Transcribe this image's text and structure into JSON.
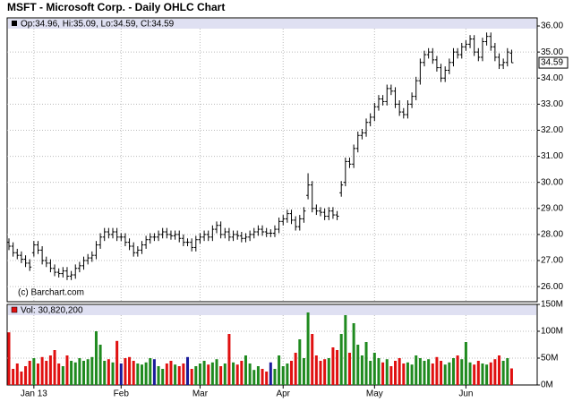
{
  "chart_data": [
    {
      "type": "ohlc",
      "title": "MSFT - Microsoft Corp. - Daily OHLC Chart",
      "legend": "Op:34.96, Hi:35.09, Lo:34.59, Cl:34.59",
      "credit": "(c) Barchart.com",
      "color": "#000000",
      "grid": true,
      "ylim": [
        25.42,
        36.31
      ],
      "yticks": [
        {
          "value": 26,
          "label": "26.00"
        },
        {
          "value": 27,
          "label": "27.00"
        },
        {
          "value": 28,
          "label": "28.00"
        },
        {
          "value": 29,
          "label": "29.00"
        },
        {
          "value": 30,
          "label": "30.00"
        },
        {
          "value": 31,
          "label": "31.00"
        },
        {
          "value": 32,
          "label": "32.00"
        },
        {
          "value": 33,
          "label": "33.00"
        },
        {
          "value": 34,
          "label": "34.00"
        },
        {
          "value": 35,
          "label": "35.00"
        },
        {
          "value": 36,
          "label": "36.00"
        }
      ],
      "open": [
        27.7,
        27.55,
        27.3,
        27.2,
        27.05,
        26.9,
        27.3,
        27.6,
        27.4,
        27.0,
        26.9,
        26.7,
        26.55,
        26.5,
        26.6,
        26.4,
        26.45,
        26.7,
        26.8,
        27.0,
        27.1,
        27.2,
        27.6,
        27.9,
        28.1,
        28.0,
        28.1,
        27.9,
        27.9,
        27.7,
        27.55,
        27.3,
        27.4,
        27.6,
        27.8,
        27.9,
        27.9,
        28.0,
        28.1,
        28.0,
        27.95,
        28.0,
        27.85,
        27.7,
        27.7,
        27.5,
        27.8,
        27.9,
        28.0,
        27.9,
        28.2,
        28.35,
        28.0,
        28.1,
        27.9,
        28.0,
        27.95,
        27.85,
        27.9,
        28.0,
        28.1,
        28.2,
        28.1,
        28.05,
        28.05,
        28.2,
        28.5,
        28.6,
        28.8,
        28.55,
        28.3,
        28.6,
        29.5,
        29.9,
        29.0,
        28.9,
        28.85,
        28.7,
        28.9,
        28.75,
        29.6,
        30.0,
        30.8,
        30.7,
        31.3,
        31.8,
        31.9,
        32.3,
        32.5,
        32.9,
        33.2,
        33.1,
        33.6,
        33.5,
        33.0,
        32.7,
        32.6,
        33.0,
        33.3,
        33.9,
        34.6,
        34.9,
        35.0,
        34.7,
        34.4,
        34.0,
        34.3,
        34.6,
        35.0,
        34.9,
        35.2,
        35.3,
        35.5,
        35.0,
        34.8,
        35.4,
        35.6,
        35.2,
        34.8,
        34.5,
        34.6,
        34.96
      ],
      "high": [
        27.85,
        27.7,
        27.45,
        27.35,
        27.2,
        27.05,
        27.75,
        27.75,
        27.55,
        27.15,
        27.05,
        26.85,
        26.7,
        26.75,
        26.75,
        26.6,
        26.85,
        26.95,
        27.15,
        27.25,
        27.35,
        27.75,
        28.05,
        28.25,
        28.25,
        28.25,
        28.25,
        28.05,
        28.05,
        27.85,
        27.7,
        27.55,
        27.75,
        27.95,
        28.05,
        28.05,
        28.15,
        28.25,
        28.25,
        28.15,
        28.15,
        28.15,
        28.0,
        27.85,
        27.85,
        27.95,
        28.05,
        28.15,
        28.15,
        28.35,
        28.5,
        28.5,
        28.25,
        28.25,
        28.15,
        28.15,
        28.1,
        28.05,
        28.15,
        28.25,
        28.35,
        28.35,
        28.25,
        28.2,
        28.35,
        28.65,
        28.75,
        28.95,
        28.95,
        28.7,
        28.75,
        29.05,
        30.35,
        30.05,
        29.15,
        29.05,
        29.0,
        29.05,
        29.05,
        28.9,
        30.05,
        30.95,
        30.95,
        31.45,
        31.95,
        32.05,
        32.45,
        32.65,
        33.05,
        33.35,
        33.35,
        33.75,
        33.75,
        33.65,
        33.15,
        32.85,
        33.15,
        33.45,
        34.05,
        34.75,
        35.05,
        35.15,
        35.15,
        34.85,
        34.55,
        34.45,
        34.75,
        35.15,
        35.15,
        35.35,
        35.45,
        35.65,
        35.65,
        35.15,
        35.55,
        35.75,
        35.75,
        35.35,
        34.95,
        34.75,
        35.15,
        35.09
      ],
      "low": [
        27.4,
        27.15,
        27.05,
        26.9,
        26.75,
        26.6,
        27.15,
        27.25,
        26.85,
        26.75,
        26.55,
        26.4,
        26.35,
        26.35,
        26.25,
        26.25,
        26.3,
        26.55,
        26.65,
        26.85,
        26.95,
        27.05,
        27.45,
        27.75,
        27.85,
        27.85,
        27.75,
        27.75,
        27.55,
        27.4,
        27.15,
        27.15,
        27.25,
        27.45,
        27.65,
        27.75,
        27.75,
        27.85,
        27.85,
        27.8,
        27.8,
        27.7,
        27.55,
        27.55,
        27.35,
        27.35,
        27.65,
        27.75,
        27.75,
        27.75,
        28.05,
        27.85,
        27.85,
        27.75,
        27.75,
        27.8,
        27.7,
        27.7,
        27.75,
        27.85,
        27.95,
        27.95,
        27.9,
        27.9,
        27.9,
        28.05,
        28.35,
        28.45,
        28.4,
        28.15,
        28.15,
        28.45,
        29.35,
        28.85,
        28.75,
        28.7,
        28.55,
        28.55,
        28.6,
        28.55,
        29.45,
        29.85,
        30.55,
        30.55,
        31.15,
        31.65,
        31.75,
        32.15,
        32.35,
        32.75,
        32.95,
        32.95,
        33.35,
        32.85,
        32.55,
        32.45,
        32.45,
        32.85,
        33.15,
        33.75,
        34.45,
        34.75,
        34.55,
        34.25,
        33.85,
        33.85,
        34.15,
        34.45,
        34.75,
        34.75,
        35.05,
        35.15,
        34.85,
        34.65,
        34.65,
        35.25,
        35.05,
        34.65,
        34.35,
        34.35,
        34.45,
        34.59
      ],
      "close": [
        27.55,
        27.3,
        27.2,
        27.05,
        26.9,
        26.75,
        27.6,
        27.4,
        27.0,
        26.9,
        26.7,
        26.55,
        26.5,
        26.6,
        26.4,
        26.45,
        26.7,
        26.8,
        27.0,
        27.1,
        27.2,
        27.6,
        27.9,
        28.1,
        28.0,
        28.1,
        27.9,
        27.9,
        27.7,
        27.55,
        27.3,
        27.4,
        27.6,
        27.8,
        27.9,
        27.9,
        28.0,
        28.1,
        28.0,
        27.95,
        28.0,
        27.85,
        27.7,
        27.7,
        27.5,
        27.8,
        27.9,
        28.0,
        27.9,
        28.2,
        28.35,
        28.0,
        28.1,
        27.9,
        28.0,
        27.95,
        27.85,
        27.9,
        28.0,
        28.1,
        28.2,
        28.1,
        28.05,
        28.05,
        28.2,
        28.5,
        28.6,
        28.8,
        28.55,
        28.3,
        28.6,
        28.9,
        29.9,
        29.0,
        28.9,
        28.85,
        28.7,
        28.9,
        28.75,
        28.7,
        29.9,
        30.8,
        30.7,
        31.3,
        31.8,
        31.9,
        32.3,
        32.5,
        32.9,
        33.2,
        33.1,
        33.6,
        33.5,
        33.0,
        32.7,
        32.6,
        33.0,
        33.3,
        33.9,
        34.6,
        34.9,
        35.0,
        34.7,
        34.4,
        34.0,
        34.3,
        34.6,
        35.0,
        34.9,
        35.2,
        35.3,
        35.5,
        35.0,
        34.8,
        35.4,
        35.6,
        35.2,
        34.8,
        34.5,
        34.6,
        35.0,
        34.59
      ]
    },
    {
      "type": "bar",
      "legend": "Vol: 30,820,200",
      "up_color": "#1f8a1f",
      "down_color": "#e01010",
      "flat_color": "#1a1a9a",
      "grid": true,
      "ylim": [
        0,
        150000000
      ],
      "yticks": [
        {
          "value": 0,
          "label": "0M"
        },
        {
          "value": 50000000,
          "label": "50M"
        },
        {
          "value": 100000000,
          "label": "100M"
        },
        {
          "value": 150000000,
          "label": "150M"
        }
      ],
      "categories": [
        null,
        null,
        null,
        null,
        null,
        null,
        "Jan 13",
        null,
        null,
        null,
        null,
        null,
        null,
        null,
        null,
        null,
        null,
        null,
        null,
        null,
        null,
        null,
        null,
        null,
        null,
        null,
        null,
        "Feb",
        null,
        null,
        null,
        null,
        null,
        null,
        null,
        null,
        null,
        null,
        null,
        null,
        null,
        null,
        null,
        null,
        null,
        null,
        "Mar",
        null,
        null,
        null,
        null,
        null,
        null,
        null,
        null,
        null,
        null,
        null,
        null,
        null,
        null,
        null,
        null,
        null,
        null,
        null,
        "Apr",
        null,
        null,
        null,
        null,
        null,
        null,
        null,
        null,
        null,
        null,
        null,
        null,
        null,
        null,
        null,
        null,
        null,
        null,
        null,
        null,
        null,
        "May",
        null,
        null,
        null,
        null,
        null,
        null,
        null,
        null,
        null,
        null,
        null,
        null,
        null,
        null,
        null,
        null,
        null,
        null,
        null,
        null,
        null,
        "Jun",
        null,
        null,
        null,
        null,
        null,
        null,
        null,
        null,
        null,
        null,
        null
      ],
      "values": [
        98000000,
        30000000,
        40000000,
        25000000,
        35000000,
        45000000,
        50000000,
        40000000,
        52000000,
        45000000,
        55000000,
        65000000,
        40000000,
        35000000,
        55000000,
        45000000,
        42000000,
        50000000,
        45000000,
        48000000,
        52000000,
        100000000,
        75000000,
        45000000,
        48000000,
        42000000,
        82000000,
        40000000,
        50000000,
        52000000,
        45000000,
        40000000,
        38000000,
        42000000,
        50000000,
        48000000,
        35000000,
        30000000,
        40000000,
        45000000,
        38000000,
        35000000,
        40000000,
        52000000,
        30000000,
        35000000,
        40000000,
        45000000,
        38000000,
        42000000,
        48000000,
        35000000,
        40000000,
        95000000,
        42000000,
        38000000,
        45000000,
        55000000,
        40000000,
        28000000,
        35000000,
        30000000,
        25000000,
        42000000,
        30000000,
        55000000,
        35000000,
        40000000,
        45000000,
        60000000,
        85000000,
        50000000,
        135000000,
        95000000,
        55000000,
        45000000,
        48000000,
        50000000,
        70000000,
        65000000,
        95000000,
        130000000,
        60000000,
        115000000,
        75000000,
        55000000,
        80000000,
        45000000,
        60000000,
        50000000,
        42000000,
        48000000,
        35000000,
        45000000,
        50000000,
        40000000,
        42000000,
        38000000,
        55000000,
        50000000,
        45000000,
        48000000,
        40000000,
        52000000,
        45000000,
        38000000,
        42000000,
        50000000,
        55000000,
        48000000,
        80000000,
        42000000,
        38000000,
        45000000,
        40000000,
        38000000,
        42000000,
        48000000,
        55000000,
        45000000,
        50000000,
        30820200
      ]
    }
  ]
}
